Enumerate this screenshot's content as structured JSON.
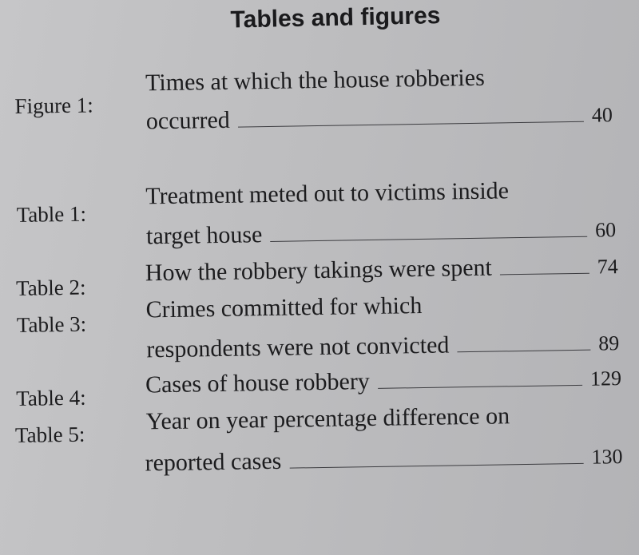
{
  "heading": "Tables and figures",
  "entries": [
    {
      "label": "Figure 1:",
      "line1": "Times at which the house robberies",
      "line2": "occurred",
      "page": "40"
    },
    {
      "label": "Table 1:",
      "line1": "Treatment meted out to victims inside",
      "line2": "target house",
      "page": "60"
    },
    {
      "label": "Table 2:",
      "line1": "",
      "line2": "How the robbery takings were spent",
      "page": "74"
    },
    {
      "label": "Table 3:",
      "line1": "Crimes committed for which",
      "line2": "respondents were not convicted",
      "page": "89"
    },
    {
      "label": "Table 4:",
      "line1": "",
      "line2": "Cases of house robbery",
      "page": "129"
    },
    {
      "label": "Table 5:",
      "line1": "Year on year percentage difference on",
      "line2": "reported cases",
      "page": "130"
    }
  ]
}
